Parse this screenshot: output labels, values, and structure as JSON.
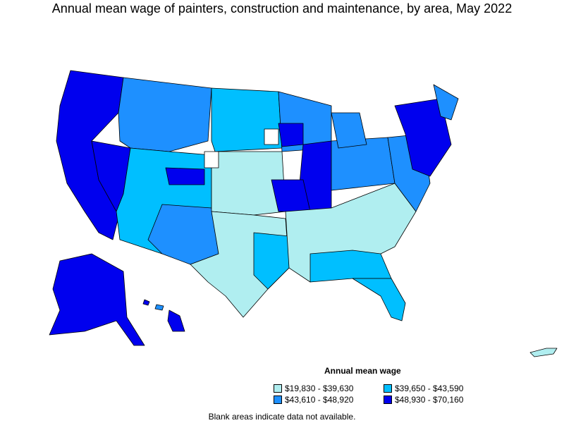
{
  "title": "Annual mean wage of painters, construction and maintenance, by area, May 2022",
  "legend": {
    "title": "Annual mean wage",
    "items": [
      {
        "label": "$19,830 - $39,630",
        "color": "#b0eef0"
      },
      {
        "label": "$39,650 - $43,590",
        "color": "#00bfff"
      },
      {
        "label": "$43,610 - $48,920",
        "color": "#1e90ff"
      },
      {
        "label": "$48,930 - $70,160",
        "color": "#0000ee"
      }
    ]
  },
  "footnote": "Blank areas indicate data not available."
}
